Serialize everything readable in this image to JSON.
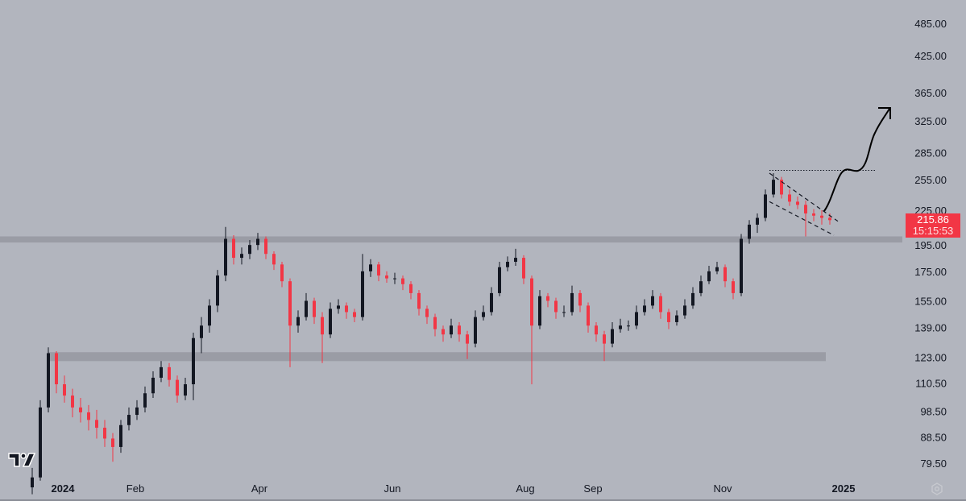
{
  "chart_data": {
    "type": "candlestick",
    "title": "",
    "y_scale": "log",
    "ylim": [
      75,
      500
    ],
    "y_ticks": [
      "485.00",
      "425.00",
      "365.00",
      "325.00",
      "285.00",
      "255.00",
      "225.00",
      "195.00",
      "175.00",
      "155.00",
      "139.00",
      "123.00",
      "110.50",
      "98.50",
      "88.50",
      "79.50"
    ],
    "x_ticks": [
      {
        "label": "2024",
        "bold": true
      },
      {
        "label": "Feb"
      },
      {
        "label": "Apr"
      },
      {
        "label": "Jun"
      },
      {
        "label": "Aug"
      },
      {
        "label": "Sep"
      },
      {
        "label": "Nov"
      },
      {
        "label": "2025",
        "bold": true
      }
    ],
    "candle_format": "ohlc",
    "candles": [
      [
        72,
        78,
        70,
        75
      ],
      [
        75,
        103,
        74,
        100
      ],
      [
        100,
        128,
        98,
        125
      ],
      [
        125,
        126,
        106,
        110
      ],
      [
        110,
        114,
        102,
        105
      ],
      [
        105,
        108,
        96,
        100
      ],
      [
        100,
        104,
        94,
        98
      ],
      [
        98,
        101,
        91,
        95
      ],
      [
        95,
        99,
        88,
        92
      ],
      [
        92,
        95,
        85,
        88
      ],
      [
        88,
        90,
        80,
        85
      ],
      [
        85,
        95,
        83,
        93
      ],
      [
        93,
        100,
        91,
        97
      ],
      [
        97,
        103,
        95,
        100
      ],
      [
        100,
        109,
        98,
        106
      ],
      [
        106,
        116,
        104,
        113
      ],
      [
        113,
        121,
        111,
        118
      ],
      [
        118,
        120,
        109,
        112
      ],
      [
        112,
        114,
        102,
        105
      ],
      [
        105,
        113,
        103,
        110
      ],
      [
        110,
        136,
        103,
        133
      ],
      [
        133,
        145,
        125,
        140
      ],
      [
        140,
        156,
        136,
        152
      ],
      [
        152,
        176,
        148,
        172
      ],
      [
        172,
        210,
        168,
        200
      ],
      [
        200,
        203,
        180,
        185
      ],
      [
        185,
        193,
        180,
        188
      ],
      [
        188,
        199,
        184,
        195
      ],
      [
        195,
        205,
        191,
        200
      ],
      [
        200,
        202,
        184,
        188
      ],
      [
        188,
        190,
        176,
        180
      ],
      [
        180,
        182,
        164,
        168
      ],
      [
        168,
        170,
        118,
        140
      ],
      [
        140,
        149,
        136,
        145
      ],
      [
        145,
        160,
        143,
        155
      ],
      [
        155,
        157,
        141,
        145
      ],
      [
        145,
        148,
        120,
        135
      ],
      [
        135,
        154,
        133,
        150
      ],
      [
        150,
        156,
        147,
        152
      ],
      [
        152,
        154,
        144,
        148
      ],
      [
        148,
        150,
        142,
        145
      ],
      [
        145,
        188,
        143,
        175
      ],
      [
        175,
        184,
        171,
        180
      ],
      [
        180,
        182,
        168,
        172
      ],
      [
        172,
        175,
        167,
        170
      ],
      [
        170,
        174,
        166,
        170
      ],
      [
        170,
        172,
        162,
        166
      ],
      [
        166,
        168,
        156,
        160
      ],
      [
        160,
        162,
        146,
        150
      ],
      [
        150,
        152,
        141,
        145
      ],
      [
        145,
        147,
        134,
        138
      ],
      [
        138,
        140,
        131,
        135
      ],
      [
        135,
        144,
        133,
        140
      ],
      [
        140,
        142,
        131,
        135
      ],
      [
        135,
        137,
        122,
        130
      ],
      [
        130,
        149,
        128,
        145
      ],
      [
        145,
        152,
        143,
        148
      ],
      [
        148,
        164,
        146,
        160
      ],
      [
        160,
        182,
        158,
        178
      ],
      [
        178,
        186,
        175,
        182
      ],
      [
        182,
        192,
        179,
        185
      ],
      [
        185,
        187,
        166,
        170
      ],
      [
        170,
        172,
        110,
        140
      ],
      [
        140,
        162,
        138,
        158
      ],
      [
        158,
        160,
        151,
        155
      ],
      [
        155,
        157,
        144,
        148
      ],
      [
        148,
        152,
        145,
        148
      ],
      [
        148,
        165,
        146,
        160
      ],
      [
        160,
        162,
        148,
        152
      ],
      [
        152,
        154,
        136,
        140
      ],
      [
        140,
        142,
        131,
        135
      ],
      [
        135,
        137,
        121,
        130
      ],
      [
        130,
        142,
        128,
        138
      ],
      [
        138,
        144,
        136,
        140
      ],
      [
        140,
        143,
        137,
        140
      ],
      [
        140,
        152,
        138,
        148
      ],
      [
        148,
        156,
        146,
        152
      ],
      [
        152,
        162,
        150,
        158
      ],
      [
        158,
        160,
        144,
        148
      ],
      [
        148,
        150,
        138,
        142
      ],
      [
        142,
        149,
        140,
        146
      ],
      [
        146,
        156,
        144,
        152
      ],
      [
        152,
        164,
        150,
        160
      ],
      [
        160,
        172,
        158,
        168
      ],
      [
        168,
        179,
        166,
        175
      ],
      [
        175,
        182,
        173,
        178
      ],
      [
        178,
        180,
        164,
        168
      ],
      [
        168,
        170,
        156,
        160
      ],
      [
        160,
        204,
        158,
        200
      ],
      [
        200,
        216,
        196,
        212
      ],
      [
        212,
        222,
        205,
        218
      ],
      [
        218,
        245,
        215,
        240
      ],
      [
        240,
        262,
        237,
        255
      ],
      [
        255,
        258,
        236,
        240
      ],
      [
        240,
        245,
        229,
        233
      ],
      [
        233,
        238,
        226,
        230
      ],
      [
        230,
        234,
        202,
        222
      ],
      [
        222,
        226,
        215,
        220
      ],
      [
        220,
        225,
        212,
        218
      ],
      [
        218,
        222,
        212,
        216
      ]
    ],
    "support_zones": [
      {
        "price_low": 197,
        "price_high": 202
      },
      {
        "price_low": 121,
        "price_high": 125.5
      }
    ],
    "resistance_line": {
      "price": 265,
      "style": "dotted"
    },
    "channel": {
      "upper": [
        262,
        215
      ],
      "lower": [
        233,
        203
      ],
      "style": "dashed"
    },
    "projection_arrow": {
      "direction": "up"
    },
    "last_price": {
      "value": "215.86",
      "countdown": "15:15:53"
    },
    "colors": {
      "background": "#b2b5be",
      "up": "#131722",
      "down": "#f23645",
      "zone": "#9598a1",
      "label": "#f23645"
    }
  },
  "icons": {
    "logo": "tradingview-logo",
    "settings": "settings-hexagon-icon"
  }
}
